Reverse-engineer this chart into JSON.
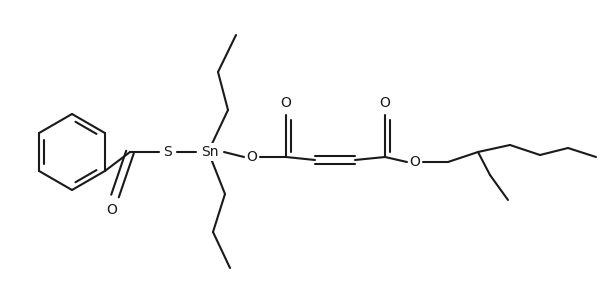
{
  "bg": "#ffffff",
  "lc": "#1a1a1a",
  "lw": 1.5,
  "figsize": [
    6.02,
    2.84
  ],
  "dpi": 100,
  "atoms": {
    "S": {
      "label": "S",
      "fs": 10
    },
    "Sn": {
      "label": "Sn",
      "fs": 10
    },
    "O1": {
      "label": "O",
      "fs": 10
    },
    "O2": {
      "label": "O",
      "fs": 10
    },
    "O3": {
      "label": "O",
      "fs": 10
    },
    "O4": {
      "label": "O",
      "fs": 10
    },
    "O5": {
      "label": "O",
      "fs": 10
    }
  }
}
